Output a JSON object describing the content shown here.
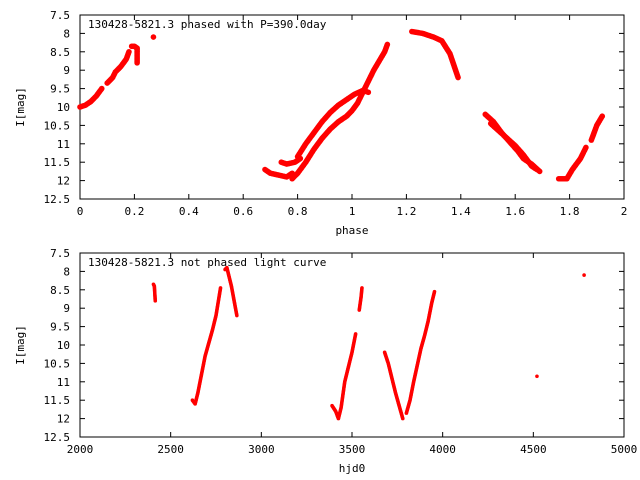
{
  "chart_data": [
    {
      "type": "scatter",
      "title": "130428-5821.3 phased with P=390.0day",
      "xlabel": "phase",
      "ylabel": "I[mag]",
      "xlim": [
        0,
        2
      ],
      "ylim": [
        7.5,
        12.5
      ],
      "y_inverted": true,
      "x_ticks": [
        "0",
        "0.2",
        "0.4",
        "0.6",
        "0.8",
        "1",
        "1.2",
        "1.4",
        "1.6",
        "1.8",
        "2"
      ],
      "y_ticks": [
        "7.5",
        "8",
        "8.5",
        "9",
        "9.5",
        "10",
        "10.5",
        "11",
        "11.5",
        "12",
        "12.5"
      ],
      "grid": false,
      "marker_color": "#ff0000",
      "segments": [
        [
          [
            0.0,
            10.0
          ],
          [
            0.02,
            9.95
          ],
          [
            0.04,
            9.85
          ],
          [
            0.06,
            9.7
          ],
          [
            0.08,
            9.5
          ]
        ],
        [
          [
            0.1,
            9.35
          ],
          [
            0.12,
            9.2
          ],
          [
            0.13,
            9.05
          ],
          [
            0.15,
            8.9
          ],
          [
            0.17,
            8.7
          ],
          [
            0.18,
            8.5
          ]
        ],
        [
          [
            0.19,
            8.35
          ],
          [
            0.2,
            8.35
          ],
          [
            0.21,
            8.4
          ],
          [
            0.21,
            8.8
          ]
        ],
        [
          [
            0.27,
            8.1
          ]
        ],
        [
          [
            0.68,
            11.7
          ],
          [
            0.7,
            11.8
          ],
          [
            0.73,
            11.85
          ],
          [
            0.76,
            11.9
          ],
          [
            0.78,
            11.8
          ]
        ],
        [
          [
            0.74,
            11.5
          ],
          [
            0.76,
            11.55
          ],
          [
            0.79,
            11.5
          ],
          [
            0.81,
            11.4
          ]
        ],
        [
          [
            0.78,
            11.95
          ],
          [
            0.8,
            11.8
          ],
          [
            0.83,
            11.5
          ],
          [
            0.86,
            11.15
          ],
          [
            0.89,
            10.85
          ],
          [
            0.92,
            10.6
          ],
          [
            0.95,
            10.4
          ],
          [
            0.98,
            10.25
          ],
          [
            1.0,
            10.1
          ],
          [
            1.02,
            9.9
          ],
          [
            1.04,
            9.6
          ],
          [
            1.06,
            9.3
          ],
          [
            1.08,
            9.0
          ],
          [
            1.1,
            8.75
          ],
          [
            1.12,
            8.5
          ],
          [
            1.13,
            8.3
          ]
        ],
        [
          [
            0.8,
            11.35
          ],
          [
            0.83,
            11.0
          ],
          [
            0.86,
            10.7
          ],
          [
            0.89,
            10.4
          ],
          [
            0.92,
            10.15
          ],
          [
            0.95,
            9.95
          ],
          [
            0.98,
            9.8
          ],
          [
            1.01,
            9.65
          ],
          [
            1.04,
            9.55
          ],
          [
            1.06,
            9.6
          ]
        ],
        [
          [
            1.22,
            7.95
          ],
          [
            1.26,
            8.0
          ],
          [
            1.3,
            8.1
          ],
          [
            1.33,
            8.2
          ],
          [
            1.36,
            8.55
          ],
          [
            1.39,
            9.2
          ]
        ],
        [
          [
            1.49,
            10.2
          ],
          [
            1.52,
            10.4
          ],
          [
            1.55,
            10.7
          ],
          [
            1.58,
            10.95
          ],
          [
            1.61,
            11.2
          ],
          [
            1.63,
            11.4
          ],
          [
            1.66,
            11.55
          ],
          [
            1.69,
            11.75
          ]
        ],
        [
          [
            1.51,
            10.45
          ],
          [
            1.54,
            10.65
          ],
          [
            1.57,
            10.85
          ],
          [
            1.6,
            11.05
          ],
          [
            1.63,
            11.3
          ],
          [
            1.66,
            11.6
          ],
          [
            1.68,
            11.7
          ]
        ],
        [
          [
            1.76,
            11.95
          ],
          [
            1.79,
            11.95
          ],
          [
            1.81,
            11.7
          ],
          [
            1.84,
            11.4
          ],
          [
            1.86,
            11.1
          ]
        ],
        [
          [
            1.88,
            10.9
          ],
          [
            1.9,
            10.5
          ],
          [
            1.92,
            10.25
          ]
        ]
      ]
    },
    {
      "type": "scatter",
      "title": "130428-5821.3 not phased light curve",
      "xlabel": "hjd0",
      "ylabel": "I[mag]",
      "xlim": [
        2000,
        5000
      ],
      "ylim": [
        7.5,
        12.5
      ],
      "y_inverted": true,
      "x_ticks": [
        "2000",
        "2500",
        "3000",
        "3500",
        "4000",
        "4500",
        "5000"
      ],
      "y_ticks": [
        "7.5",
        "8",
        "8.5",
        "9",
        "9.5",
        "10",
        "10.5",
        "11",
        "11.5",
        "12",
        "12.5"
      ],
      "grid": false,
      "marker_color": "#ff0000",
      "segments": [
        [
          [
            2405,
            8.35
          ],
          [
            2410,
            8.4
          ],
          [
            2415,
            8.8
          ]
        ],
        [
          [
            2620,
            11.5
          ],
          [
            2635,
            11.6
          ],
          [
            2650,
            11.3
          ],
          [
            2670,
            10.8
          ],
          [
            2690,
            10.3
          ],
          [
            2710,
            9.95
          ],
          [
            2730,
            9.6
          ],
          [
            2750,
            9.2
          ],
          [
            2765,
            8.75
          ],
          [
            2775,
            8.45
          ]
        ],
        [
          [
            2800,
            7.95
          ],
          [
            2810,
            7.9
          ],
          [
            2820,
            8.1
          ],
          [
            2835,
            8.4
          ],
          [
            2850,
            8.8
          ],
          [
            2865,
            9.2
          ]
        ],
        [
          [
            3390,
            11.65
          ],
          [
            3410,
            11.8
          ],
          [
            3425,
            12.0
          ],
          [
            3440,
            11.7
          ],
          [
            3460,
            11.0
          ],
          [
            3480,
            10.6
          ],
          [
            3500,
            10.2
          ],
          [
            3520,
            9.7
          ]
        ],
        [
          [
            3540,
            9.05
          ],
          [
            3550,
            8.7
          ],
          [
            3555,
            8.45
          ]
        ],
        [
          [
            3680,
            10.2
          ],
          [
            3700,
            10.5
          ],
          [
            3720,
            10.9
          ],
          [
            3740,
            11.3
          ],
          [
            3760,
            11.65
          ],
          [
            3780,
            12.0
          ]
        ],
        [
          [
            3800,
            11.85
          ],
          [
            3820,
            11.5
          ],
          [
            3840,
            11.0
          ],
          [
            3860,
            10.55
          ],
          [
            3880,
            10.1
          ],
          [
            3900,
            9.75
          ],
          [
            3920,
            9.35
          ],
          [
            3940,
            8.85
          ],
          [
            3955,
            8.55
          ]
        ],
        [
          [
            4520,
            10.85
          ]
        ],
        [
          [
            4780,
            8.1
          ]
        ]
      ]
    }
  ]
}
